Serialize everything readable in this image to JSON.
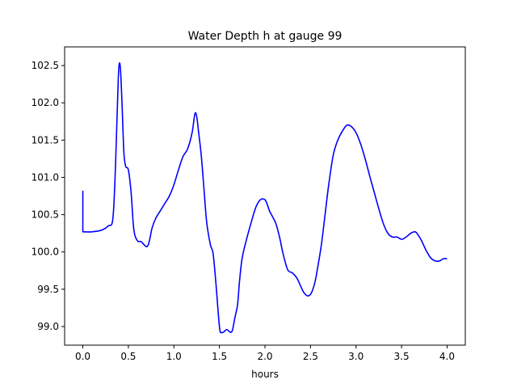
{
  "chart_data": {
    "type": "line",
    "title": "Water Depth h at gauge 99",
    "xlabel": "hours",
    "ylabel": "",
    "xlim": [
      -0.2,
      4.2
    ],
    "ylim": [
      98.75,
      102.75
    ],
    "xticks": [
      0.0,
      0.5,
      1.0,
      1.5,
      2.0,
      2.5,
      3.0,
      3.5,
      4.0
    ],
    "xtick_labels": [
      "0.0",
      "0.5",
      "1.0",
      "1.5",
      "2.0",
      "2.5",
      "3.0",
      "3.5",
      "4.0"
    ],
    "yticks": [
      99.0,
      99.5,
      100.0,
      100.5,
      101.0,
      101.5,
      102.0,
      102.5
    ],
    "ytick_labels": [
      "99.0",
      "99.5",
      "100.0",
      "100.5",
      "101.0",
      "101.5",
      "102.0",
      "102.5"
    ],
    "grid": false,
    "series": [
      {
        "color": "#0000ff",
        "x": [
          0.0,
          0.0,
          0.1,
          0.2,
          0.28,
          0.33,
          0.36,
          0.39,
          0.41,
          0.43,
          0.45,
          0.47,
          0.5,
          0.53,
          0.56,
          0.6,
          0.64,
          0.67,
          0.7,
          0.72,
          0.74,
          0.76,
          0.8,
          0.85,
          0.9,
          0.95,
          1.0,
          1.05,
          1.1,
          1.15,
          1.2,
          1.23,
          1.25,
          1.27,
          1.3,
          1.33,
          1.36,
          1.4,
          1.43,
          1.46,
          1.5,
          1.52,
          1.55,
          1.58,
          1.61,
          1.64,
          1.67,
          1.7,
          1.72,
          1.75,
          1.8,
          1.85,
          1.9,
          1.95,
          2.0,
          2.03,
          2.05,
          2.08,
          2.12,
          2.16,
          2.2,
          2.25,
          2.3,
          2.35,
          2.4,
          2.43,
          2.47,
          2.51,
          2.55,
          2.58,
          2.62,
          2.66,
          2.7,
          2.75,
          2.8,
          2.85,
          2.9,
          2.95,
          3.0,
          3.05,
          3.1,
          3.15,
          3.2,
          3.25,
          3.3,
          3.35,
          3.4,
          3.45,
          3.5,
          3.55,
          3.6,
          3.65,
          3.68,
          3.72,
          3.77,
          3.82,
          3.87,
          3.92,
          3.96,
          4.0
        ],
        "y": [
          100.82,
          100.27,
          100.27,
          100.29,
          100.35,
          100.45,
          101.2,
          102.35,
          102.5,
          102.0,
          101.35,
          101.15,
          101.1,
          100.8,
          100.3,
          100.15,
          100.14,
          100.1,
          100.07,
          100.1,
          100.2,
          100.32,
          100.45,
          100.55,
          100.65,
          100.75,
          100.9,
          101.1,
          101.28,
          101.38,
          101.6,
          101.85,
          101.82,
          101.62,
          101.3,
          100.85,
          100.4,
          100.1,
          99.98,
          99.6,
          99.0,
          98.92,
          98.93,
          98.96,
          98.93,
          98.94,
          99.12,
          99.3,
          99.6,
          99.92,
          100.18,
          100.4,
          100.6,
          100.7,
          100.7,
          100.62,
          100.55,
          100.48,
          100.38,
          100.2,
          99.97,
          99.76,
          99.72,
          99.65,
          99.52,
          99.45,
          99.41,
          99.45,
          99.6,
          99.8,
          100.1,
          100.5,
          100.9,
          101.3,
          101.5,
          101.62,
          101.7,
          101.68,
          101.6,
          101.45,
          101.25,
          101.02,
          100.8,
          100.58,
          100.38,
          100.25,
          100.2,
          100.2,
          100.17,
          100.2,
          100.25,
          100.27,
          100.23,
          100.15,
          100.02,
          99.92,
          99.88,
          99.88,
          99.91,
          99.91
        ]
      }
    ]
  }
}
